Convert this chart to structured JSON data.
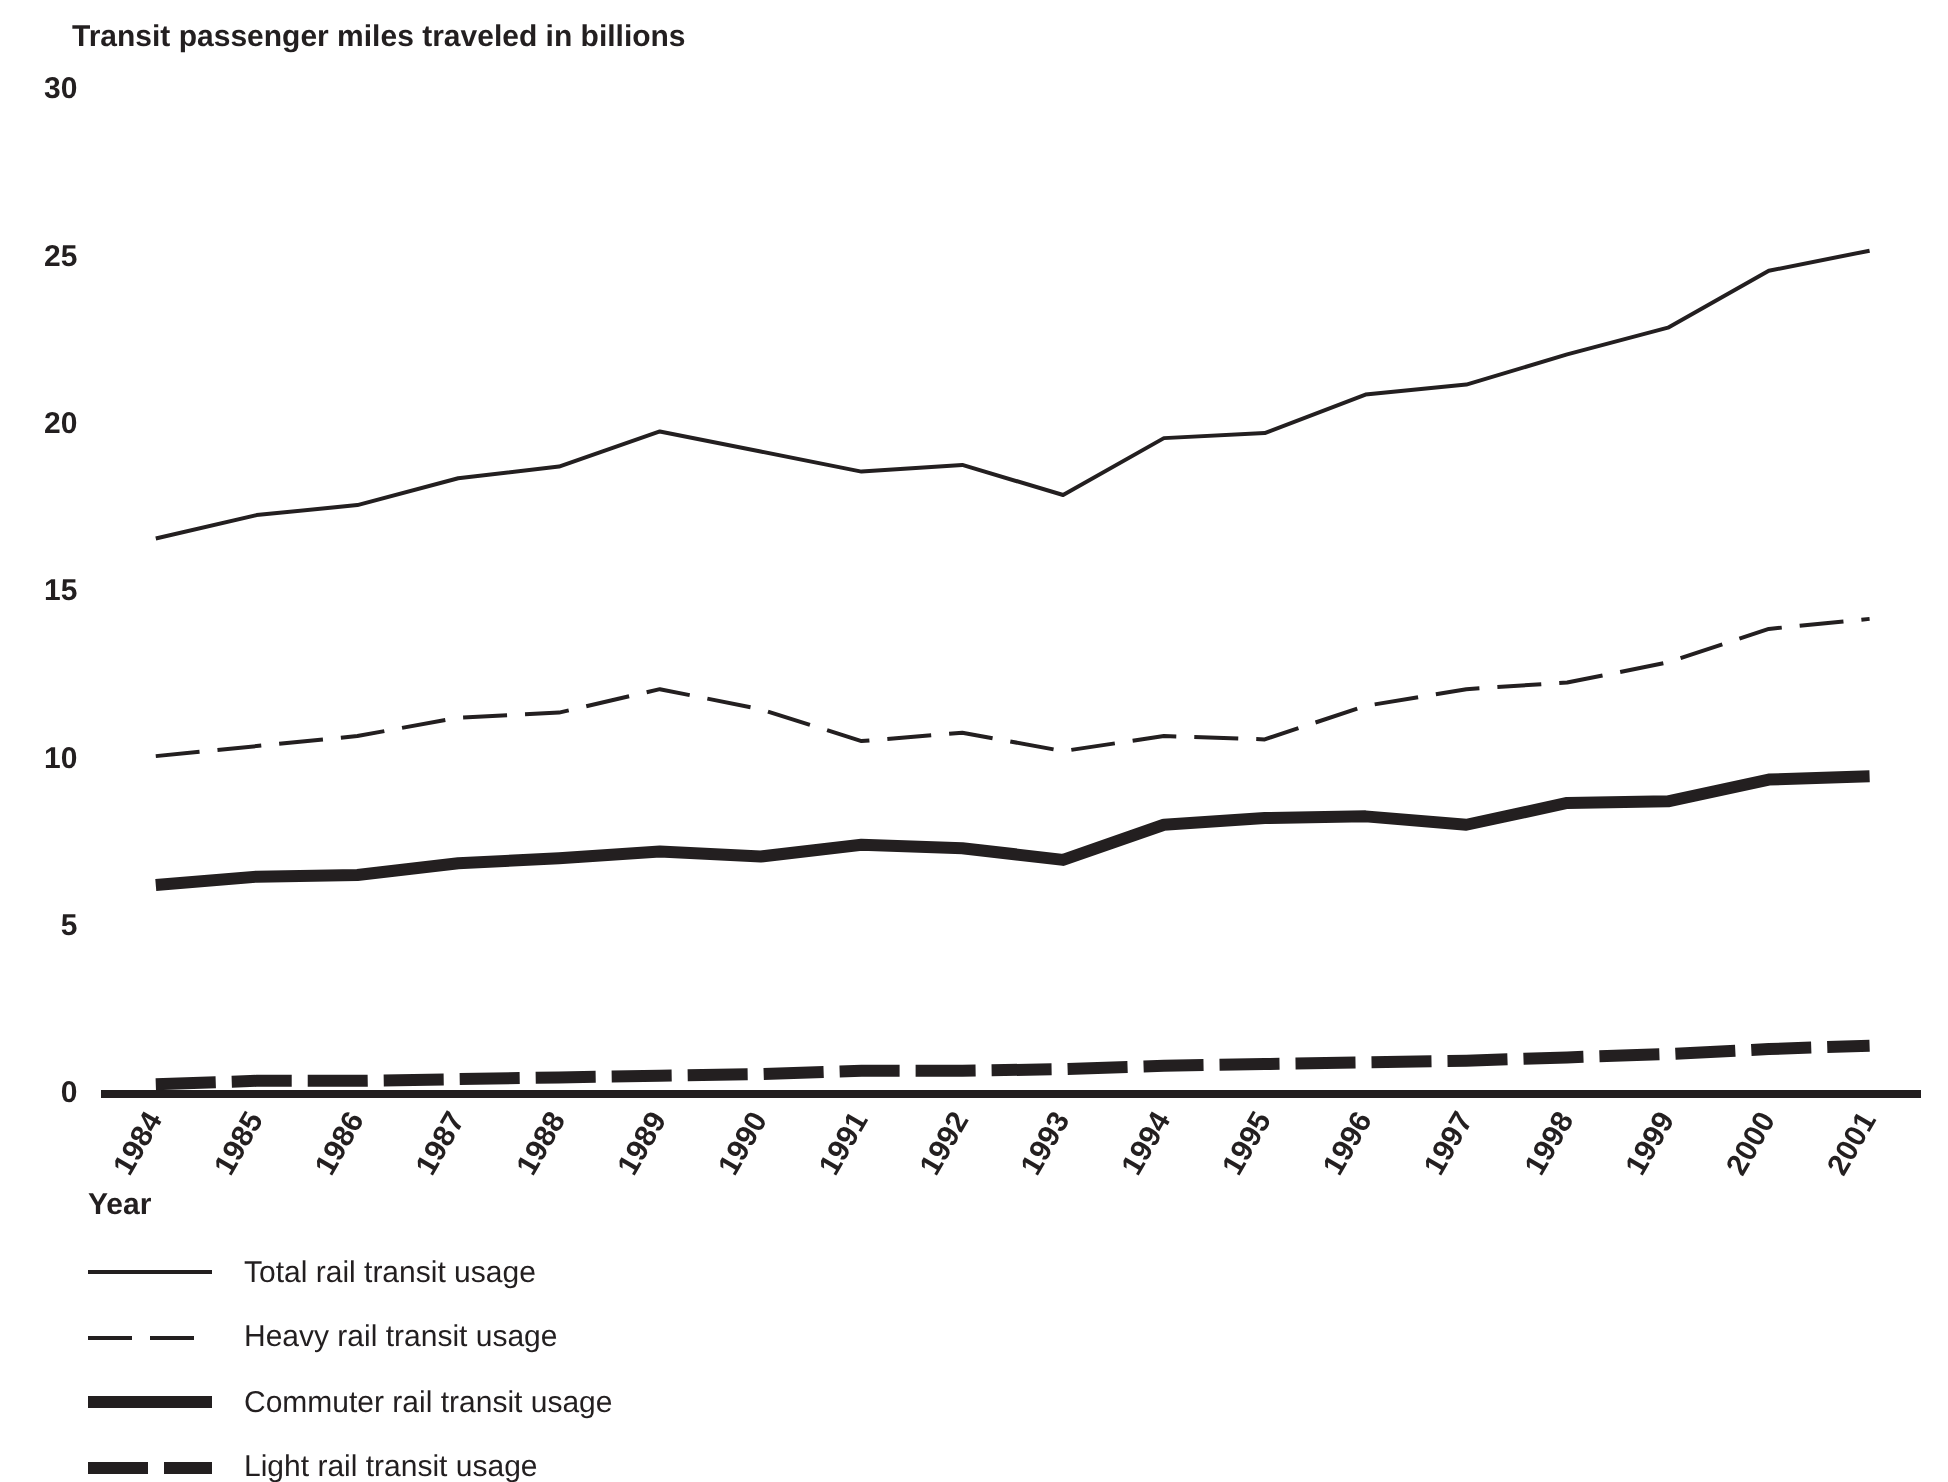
{
  "chart_data": {
    "type": "line",
    "ylabel": "Transit passenger miles traveled in billions",
    "xlabel": "Year",
    "categories": [
      "1984",
      "1985",
      "1986",
      "1987",
      "1988",
      "1989",
      "1990",
      "1991",
      "1992",
      "1993",
      "1994",
      "1995",
      "1996",
      "1997",
      "1998",
      "1999",
      "2000",
      "2001"
    ],
    "ylim": [
      0,
      30
    ],
    "yticks": [
      0,
      5,
      10,
      15,
      20,
      25,
      30
    ],
    "grid": false,
    "legend": "bottom",
    "marker": "none",
    "series": [
      {
        "name": "Total rail transit usage",
        "color": "#231f20",
        "line_style": "solid",
        "values": [
          16.6,
          17.3,
          17.6,
          18.4,
          18.75,
          19.8,
          19.2,
          18.6,
          18.8,
          17.9,
          19.6,
          19.75,
          20.9,
          21.2,
          22.1,
          22.9,
          24.6,
          25.2
        ]
      },
      {
        "name": "Heavy rail transit usage",
        "color": "#231f20",
        "line_style": "dashed",
        "values": [
          10.1,
          10.4,
          10.7,
          11.25,
          11.4,
          12.1,
          11.5,
          10.55,
          10.8,
          10.25,
          10.7,
          10.6,
          11.6,
          12.1,
          12.3,
          12.9,
          13.9,
          14.2
        ]
      },
      {
        "name": "Commuter rail transit usage",
        "color": "#231f20",
        "line_style": "solid",
        "values": [
          6.25,
          6.5,
          6.55,
          6.9,
          7.05,
          7.25,
          7.1,
          7.45,
          7.35,
          7.0,
          8.05,
          8.25,
          8.3,
          8.05,
          8.7,
          8.75,
          9.4,
          9.5
        ]
      },
      {
        "name": "Light rail transit usage",
        "color": "#231f20",
        "line_style": "dashed",
        "values": [
          0.3,
          0.4,
          0.4,
          0.45,
          0.5,
          0.55,
          0.6,
          0.7,
          0.7,
          0.75,
          0.85,
          0.9,
          0.95,
          1.0,
          1.1,
          1.2,
          1.35,
          1.45
        ]
      }
    ]
  }
}
